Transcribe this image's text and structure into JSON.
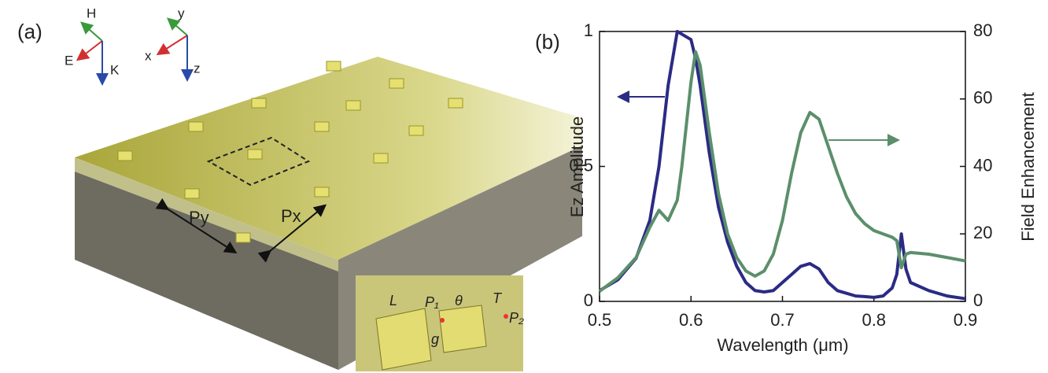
{
  "panel_a": {
    "label": "(a)",
    "axes": [
      "H",
      "E",
      "K",
      "y",
      "x",
      "z"
    ],
    "periods": [
      "Py",
      "Px"
    ],
    "inset": [
      "L",
      "P₁",
      "θ",
      "T",
      "P₂",
      "g"
    ]
  },
  "chart_data": {
    "type": "line",
    "label": "(b)",
    "x_label": "Wavelength (μm)",
    "y_label": "Ez Amplitude",
    "y2_label": "Field Enhancement",
    "x": [
      0.5,
      0.52,
      0.54,
      0.555,
      0.565,
      0.575,
      0.585,
      0.59,
      0.6,
      0.605,
      0.61,
      0.62,
      0.63,
      0.64,
      0.65,
      0.66,
      0.67,
      0.68,
      0.69,
      0.7,
      0.71,
      0.72,
      0.73,
      0.74,
      0.75,
      0.76,
      0.77,
      0.78,
      0.79,
      0.8,
      0.81,
      0.82,
      0.825,
      0.83,
      0.835,
      0.84,
      0.86,
      0.88,
      0.9
    ],
    "series": [
      {
        "color": "#2b2b85",
        "values": [
          0.04,
          0.08,
          0.16,
          0.3,
          0.5,
          0.8,
          1.0,
          0.99,
          0.97,
          0.9,
          0.8,
          0.55,
          0.35,
          0.22,
          0.13,
          0.07,
          0.04,
          0.035,
          0.04,
          0.07,
          0.1,
          0.13,
          0.14,
          0.12,
          0.07,
          0.04,
          0.03,
          0.02,
          0.018,
          0.015,
          0.02,
          0.05,
          0.1,
          0.25,
          0.12,
          0.07,
          0.04,
          0.02,
          0.01
        ]
      },
      {
        "color": "#5b8f6b",
        "axis": "y2",
        "values": [
          3,
          7,
          13,
          22,
          27,
          24,
          30,
          40,
          65,
          74,
          70,
          50,
          32,
          20,
          13,
          9,
          7.5,
          9,
          14,
          24,
          38,
          50,
          56,
          54,
          46,
          38,
          31,
          26,
          23,
          21,
          20,
          19,
          18,
          10,
          14,
          14.5,
          14,
          13,
          12
        ]
      }
    ],
    "xlim": [
      0.5,
      0.9
    ],
    "xticks": [
      0.5,
      0.6,
      0.7,
      0.8,
      0.9
    ],
    "ylim": [
      0,
      1
    ],
    "yticks": [
      0,
      0.5,
      1
    ],
    "y2lim": [
      0,
      80
    ],
    "y2ticks": [
      0,
      20,
      40,
      60,
      80
    ]
  }
}
